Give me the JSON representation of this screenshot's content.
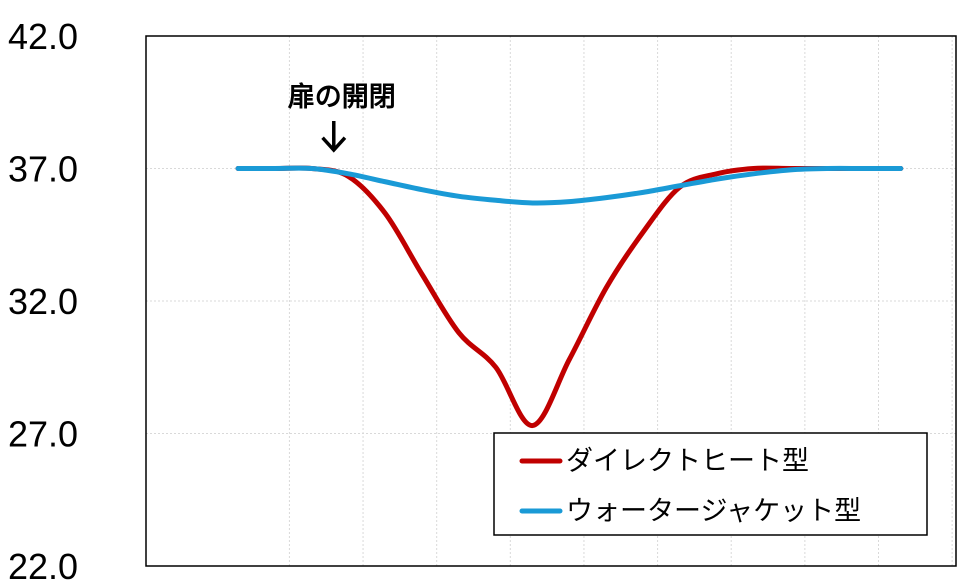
{
  "chart_data": {
    "type": "line",
    "ylim": [
      22.0,
      42.0
    ],
    "y_ticks": [
      "42.0",
      "37.0",
      "32.0",
      "27.0",
      "22.0"
    ],
    "grid": true,
    "legend_position": "bottom-right",
    "annotation": {
      "text": "扉の開閉",
      "x": 1.3,
      "arrow": "↓"
    },
    "series": [
      {
        "name": "ダイレクトヒート型",
        "color": "#c00000",
        "x": [
          0,
          0.5,
          1,
          1.5,
          2,
          2.5,
          3,
          3.5,
          4,
          4.5,
          5,
          5.5,
          6,
          6.5,
          7,
          7.5,
          8,
          8.5,
          9
        ],
        "y": [
          37.0,
          37.0,
          37.0,
          36.7,
          35.3,
          33.0,
          30.8,
          29.5,
          27.3,
          29.8,
          32.5,
          34.6,
          36.3,
          36.8,
          37.0,
          37.0,
          37.0,
          37.0,
          37.0
        ]
      },
      {
        "name": "ウォータージャケット型",
        "color": "#1a9ad6",
        "x": [
          0,
          0.5,
          1,
          1.5,
          2,
          2.5,
          3,
          3.5,
          4,
          4.5,
          5,
          5.5,
          6,
          6.5,
          7,
          7.5,
          8,
          8.5,
          9
        ],
        "y": [
          37.0,
          37.0,
          37.0,
          36.8,
          36.5,
          36.2,
          35.95,
          35.8,
          35.7,
          35.75,
          35.9,
          36.1,
          36.35,
          36.6,
          36.8,
          36.95,
          37.0,
          37.0,
          37.0
        ]
      }
    ]
  }
}
